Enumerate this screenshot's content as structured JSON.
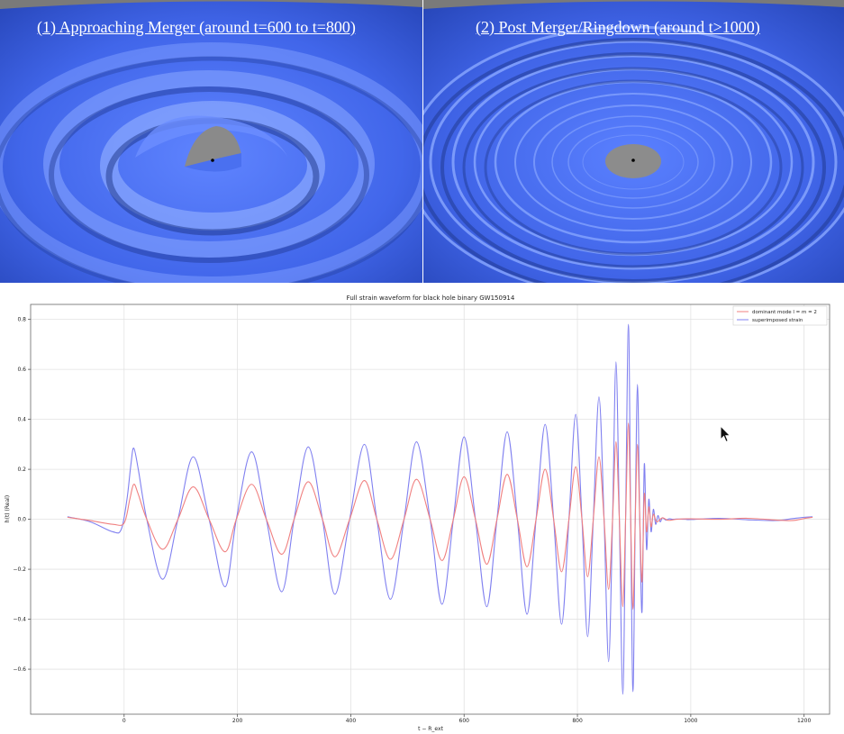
{
  "panels": {
    "left": {
      "link_text": "(1) Approaching Merger (around t=600 to t=800)"
    },
    "right": {
      "link_text": "(2) Post Merger/Ringdown (around t>1000)"
    }
  },
  "colors": {
    "surface": "#4a70f0",
    "disc": "#8c8c8c",
    "red_series": "#f08080",
    "blue_series": "#8080f0"
  },
  "chart_data": {
    "type": "line",
    "title": "Full strain waveform for black hole binary GW150914",
    "xlabel": "t − R_ext",
    "ylabel": "h(t) (Real)",
    "xlim": [
      -165,
      1245
    ],
    "ylim": [
      -0.78,
      0.86
    ],
    "x_ticks": [
      0,
      200,
      400,
      600,
      800,
      1000,
      1200
    ],
    "x_tick_labels": [
      "0",
      "200",
      "400",
      "600",
      "800",
      "1000",
      "1200"
    ],
    "y_ticks": [
      0.8,
      0.6,
      0.4,
      0.2,
      0.0,
      -0.2,
      -0.4,
      -0.6
    ],
    "y_tick_labels": [
      "0.8",
      "0.6",
      "0.4",
      "0.2",
      "0.0",
      "−0.2",
      "−0.4",
      "−0.6"
    ],
    "grid": true,
    "legend": "top-right",
    "series": [
      {
        "name": "dominant mode l = m = 2",
        "color": "#f08080",
        "x": [
          -100,
          -60,
          -20,
          0,
          10,
          17,
          25,
          40,
          68,
          95,
          122,
          150,
          178,
          198,
          225,
          251,
          278,
          300,
          325,
          350,
          372,
          398,
          424,
          446,
          470,
          494,
          516,
          540,
          561,
          581,
          600,
          620,
          640,
          658,
          676,
          694,
          711,
          727,
          743,
          758,
          772,
          785,
          797,
          808,
          818,
          828,
          838,
          847,
          855,
          862,
          868,
          874,
          880,
          885,
          890,
          894,
          898,
          902,
          906,
          910,
          914,
          918,
          922,
          926,
          930,
          934,
          940,
          950,
          960,
          975,
          1000,
          1050,
          1100,
          1150,
          1180,
          1200,
          1215
        ],
        "y": [
          0.008,
          -0.005,
          -0.02,
          -0.015,
          0.08,
          0.14,
          0.1,
          0.0,
          -0.12,
          0.0,
          0.13,
          0.0,
          -0.13,
          0.0,
          0.14,
          0.0,
          -0.14,
          0.0,
          0.15,
          0.0,
          -0.15,
          0.0,
          0.155,
          0.0,
          -0.16,
          0.0,
          0.16,
          0.0,
          -0.165,
          0.0,
          0.17,
          0.0,
          -0.18,
          0.0,
          0.18,
          0.0,
          -0.19,
          0.0,
          0.2,
          0.0,
          -0.21,
          0.0,
          0.21,
          0.0,
          -0.23,
          0.0,
          0.25,
          0.0,
          -0.28,
          0.0,
          0.31,
          0.0,
          -0.35,
          0.0,
          0.385,
          0.0,
          -0.36,
          0.0,
          0.3,
          0.0,
          -0.25,
          0.1,
          -0.05,
          0.05,
          -0.03,
          0.02,
          -0.01,
          0.006,
          -0.004,
          0.0,
          0.002,
          0.0,
          0.004,
          -0.003,
          -0.005,
          0.003,
          0.008
        ]
      },
      {
        "name": "superimposed strain",
        "color": "#8080f0",
        "x": [
          -100,
          -60,
          -20,
          -5,
          5,
          12,
          17,
          25,
          40,
          68,
          95,
          122,
          150,
          178,
          198,
          225,
          251,
          278,
          300,
          325,
          350,
          372,
          398,
          424,
          446,
          470,
          494,
          516,
          540,
          561,
          581,
          600,
          620,
          640,
          658,
          676,
          694,
          711,
          727,
          743,
          758,
          772,
          785,
          797,
          808,
          818,
          828,
          838,
          847,
          855,
          862,
          868,
          874,
          880,
          885,
          890,
          894,
          898,
          902,
          906,
          910,
          914,
          918,
          922,
          926,
          930,
          934,
          938,
          942,
          946,
          950,
          956,
          962,
          968,
          975,
          990,
          1000,
          1050,
          1100,
          1150,
          1180,
          1200,
          1215
        ],
        "y": [
          0.01,
          -0.01,
          -0.05,
          -0.04,
          0.08,
          0.22,
          0.285,
          0.2,
          0.0,
          -0.24,
          0.0,
          0.25,
          0.0,
          -0.27,
          0.0,
          0.27,
          0.0,
          -0.29,
          0.0,
          0.29,
          0.0,
          -0.3,
          0.0,
          0.3,
          0.0,
          -0.32,
          0.0,
          0.31,
          0.0,
          -0.34,
          0.0,
          0.33,
          0.0,
          -0.35,
          0.0,
          0.35,
          0.0,
          -0.38,
          0.0,
          0.38,
          0.0,
          -0.42,
          0.0,
          0.42,
          0.0,
          -0.47,
          0.0,
          0.49,
          0.0,
          -0.57,
          0.0,
          0.63,
          0.0,
          -0.7,
          0.0,
          0.78,
          0.0,
          -0.69,
          0.0,
          0.54,
          0.0,
          -0.37,
          0.22,
          -0.12,
          0.08,
          -0.05,
          0.04,
          -0.02,
          0.015,
          -0.01,
          0.006,
          -0.003,
          0.002,
          0.0,
          0.001,
          0.0,
          -0.001,
          0.004,
          -0.002,
          -0.005,
          0.003,
          0.008,
          0.01
        ]
      }
    ]
  }
}
